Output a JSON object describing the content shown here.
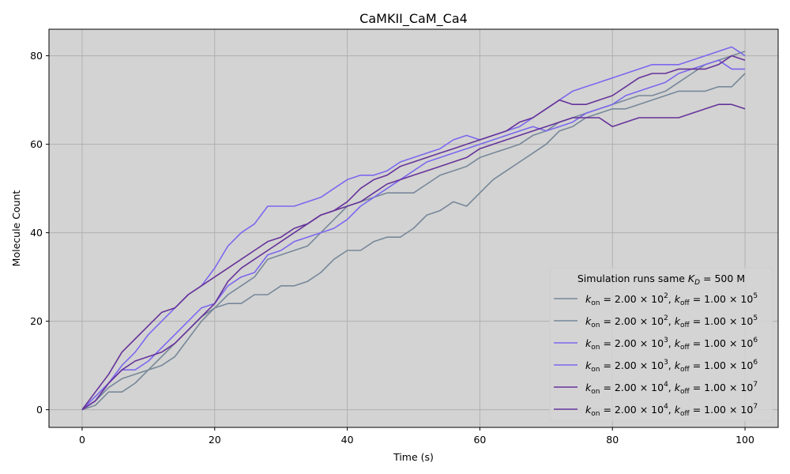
{
  "chart_data": {
    "type": "line",
    "title": "CaMKII_CaM_Ca4",
    "xlabel": "Time (s)",
    "ylabel": "Molecule Count",
    "xlim": [
      -5,
      105
    ],
    "ylim": [
      -4,
      86
    ],
    "xticks": [
      0,
      20,
      40,
      60,
      80,
      100
    ],
    "yticks": [
      0,
      20,
      40,
      60,
      80
    ],
    "grid": true,
    "background": "#d3d3d3",
    "legend": {
      "title": "Simulation runs same K_D = 500 M",
      "title_prefix": "Simulation runs same ",
      "title_symbol": "K",
      "title_subscript": "D",
      "title_suffix": " = 500 M",
      "placement": "lower-right"
    },
    "series": [
      {
        "name": "k_on = 2.00 × 10^2, k_off = 1.00 × 10^5",
        "kon_exp": "2",
        "koff_exp": "5",
        "color": "#778899",
        "points": [
          [
            0,
            0
          ],
          [
            2,
            1
          ],
          [
            4,
            4
          ],
          [
            6,
            4
          ],
          [
            8,
            6
          ],
          [
            10,
            9
          ],
          [
            12,
            10
          ],
          [
            14,
            12
          ],
          [
            16,
            16
          ],
          [
            18,
            20
          ],
          [
            20,
            23
          ],
          [
            22,
            24
          ],
          [
            24,
            24
          ],
          [
            26,
            26
          ],
          [
            28,
            26
          ],
          [
            30,
            28
          ],
          [
            32,
            28
          ],
          [
            34,
            29
          ],
          [
            36,
            31
          ],
          [
            38,
            34
          ],
          [
            40,
            36
          ],
          [
            42,
            36
          ],
          [
            44,
            38
          ],
          [
            46,
            39
          ],
          [
            48,
            39
          ],
          [
            50,
            41
          ],
          [
            52,
            44
          ],
          [
            54,
            45
          ],
          [
            56,
            47
          ],
          [
            58,
            46
          ],
          [
            60,
            49
          ],
          [
            62,
            52
          ],
          [
            64,
            54
          ],
          [
            66,
            56
          ],
          [
            68,
            58
          ],
          [
            70,
            60
          ],
          [
            72,
            63
          ],
          [
            74,
            64
          ],
          [
            76,
            66
          ],
          [
            78,
            67
          ],
          [
            80,
            68
          ],
          [
            82,
            68
          ],
          [
            84,
            69
          ],
          [
            86,
            70
          ],
          [
            88,
            71
          ],
          [
            90,
            72
          ],
          [
            92,
            72
          ],
          [
            94,
            72
          ],
          [
            96,
            73
          ],
          [
            98,
            73
          ],
          [
            100,
            76
          ]
        ]
      },
      {
        "name": "k_on = 2.00 × 10^2, k_off = 1.00 × 10^5",
        "kon_exp": "2",
        "koff_exp": "5",
        "color": "#778899",
        "points": [
          [
            0,
            0
          ],
          [
            2,
            2
          ],
          [
            4,
            5
          ],
          [
            6,
            7
          ],
          [
            8,
            8
          ],
          [
            10,
            9
          ],
          [
            12,
            12
          ],
          [
            14,
            15
          ],
          [
            16,
            18
          ],
          [
            18,
            21
          ],
          [
            20,
            23
          ],
          [
            22,
            26
          ],
          [
            24,
            28
          ],
          [
            26,
            30
          ],
          [
            28,
            34
          ],
          [
            30,
            35
          ],
          [
            32,
            36
          ],
          [
            34,
            37
          ],
          [
            36,
            40
          ],
          [
            38,
            43
          ],
          [
            40,
            46
          ],
          [
            42,
            47
          ],
          [
            44,
            48
          ],
          [
            46,
            49
          ],
          [
            48,
            49
          ],
          [
            50,
            49
          ],
          [
            52,
            51
          ],
          [
            54,
            53
          ],
          [
            56,
            54
          ],
          [
            58,
            55
          ],
          [
            60,
            57
          ],
          [
            62,
            58
          ],
          [
            64,
            59
          ],
          [
            66,
            60
          ],
          [
            68,
            62
          ],
          [
            70,
            63
          ],
          [
            72,
            65
          ],
          [
            74,
            66
          ],
          [
            76,
            67
          ],
          [
            78,
            68
          ],
          [
            80,
            69
          ],
          [
            82,
            70
          ],
          [
            84,
            71
          ],
          [
            86,
            71
          ],
          [
            88,
            72
          ],
          [
            90,
            74
          ],
          [
            92,
            76
          ],
          [
            94,
            78
          ],
          [
            96,
            79
          ],
          [
            98,
            80
          ],
          [
            100,
            81
          ]
        ]
      },
      {
        "name": "k_on = 2.00 × 10^3, k_off = 1.00 × 10^6",
        "kon_exp": "3",
        "koff_exp": "6",
        "color": "#7b68ee",
        "points": [
          [
            0,
            0
          ],
          [
            2,
            2
          ],
          [
            4,
            6
          ],
          [
            6,
            9
          ],
          [
            8,
            9
          ],
          [
            10,
            11
          ],
          [
            12,
            14
          ],
          [
            14,
            17
          ],
          [
            16,
            20
          ],
          [
            18,
            23
          ],
          [
            20,
            24
          ],
          [
            22,
            28
          ],
          [
            24,
            30
          ],
          [
            26,
            31
          ],
          [
            28,
            35
          ],
          [
            30,
            36
          ],
          [
            32,
            38
          ],
          [
            34,
            39
          ],
          [
            36,
            40
          ],
          [
            38,
            41
          ],
          [
            40,
            43
          ],
          [
            42,
            46
          ],
          [
            44,
            48
          ],
          [
            46,
            50
          ],
          [
            48,
            52
          ],
          [
            50,
            54
          ],
          [
            52,
            56
          ],
          [
            54,
            57
          ],
          [
            56,
            58
          ],
          [
            58,
            59
          ],
          [
            60,
            60
          ],
          [
            62,
            61
          ],
          [
            64,
            62
          ],
          [
            66,
            63
          ],
          [
            68,
            64
          ],
          [
            70,
            63
          ],
          [
            72,
            64
          ],
          [
            74,
            65
          ],
          [
            76,
            67
          ],
          [
            78,
            68
          ],
          [
            80,
            69
          ],
          [
            82,
            71
          ],
          [
            84,
            72
          ],
          [
            86,
            73
          ],
          [
            88,
            74
          ],
          [
            90,
            76
          ],
          [
            92,
            77
          ],
          [
            94,
            78
          ],
          [
            96,
            79
          ],
          [
            98,
            77
          ],
          [
            100,
            77
          ]
        ]
      },
      {
        "name": "k_on = 2.00 × 10^3, k_off = 1.00 × 10^6",
        "kon_exp": "3",
        "koff_exp": "6",
        "color": "#7b68ee",
        "points": [
          [
            0,
            0
          ],
          [
            2,
            3
          ],
          [
            4,
            6
          ],
          [
            6,
            10
          ],
          [
            8,
            13
          ],
          [
            10,
            17
          ],
          [
            12,
            20
          ],
          [
            14,
            23
          ],
          [
            16,
            26
          ],
          [
            18,
            28
          ],
          [
            20,
            32
          ],
          [
            22,
            37
          ],
          [
            24,
            40
          ],
          [
            26,
            42
          ],
          [
            28,
            46
          ],
          [
            30,
            46
          ],
          [
            32,
            46
          ],
          [
            34,
            47
          ],
          [
            36,
            48
          ],
          [
            38,
            50
          ],
          [
            40,
            52
          ],
          [
            42,
            53
          ],
          [
            44,
            53
          ],
          [
            46,
            54
          ],
          [
            48,
            56
          ],
          [
            50,
            57
          ],
          [
            52,
            58
          ],
          [
            54,
            59
          ],
          [
            56,
            61
          ],
          [
            58,
            62
          ],
          [
            60,
            61
          ],
          [
            62,
            62
          ],
          [
            64,
            63
          ],
          [
            66,
            64
          ],
          [
            68,
            66
          ],
          [
            70,
            68
          ],
          [
            72,
            70
          ],
          [
            74,
            72
          ],
          [
            76,
            73
          ],
          [
            78,
            74
          ],
          [
            80,
            75
          ],
          [
            82,
            76
          ],
          [
            84,
            77
          ],
          [
            86,
            78
          ],
          [
            88,
            78
          ],
          [
            90,
            78
          ],
          [
            92,
            79
          ],
          [
            94,
            80
          ],
          [
            96,
            81
          ],
          [
            98,
            82
          ],
          [
            100,
            80
          ]
        ]
      },
      {
        "name": "k_on = 2.00 × 10^4, k_off = 1.00 × 10^7",
        "kon_exp": "4",
        "koff_exp": "7",
        "color": "#663399",
        "points": [
          [
            0,
            0
          ],
          [
            2,
            2
          ],
          [
            4,
            6
          ],
          [
            6,
            9
          ],
          [
            8,
            11
          ],
          [
            10,
            12
          ],
          [
            12,
            13
          ],
          [
            14,
            15
          ],
          [
            16,
            18
          ],
          [
            18,
            21
          ],
          [
            20,
            24
          ],
          [
            22,
            29
          ],
          [
            24,
            32
          ],
          [
            26,
            34
          ],
          [
            28,
            36
          ],
          [
            30,
            38
          ],
          [
            32,
            40
          ],
          [
            34,
            42
          ],
          [
            36,
            44
          ],
          [
            38,
            45
          ],
          [
            40,
            46
          ],
          [
            42,
            47
          ],
          [
            44,
            49
          ],
          [
            46,
            51
          ],
          [
            48,
            52
          ],
          [
            50,
            53
          ],
          [
            52,
            54
          ],
          [
            54,
            55
          ],
          [
            56,
            56
          ],
          [
            58,
            57
          ],
          [
            60,
            59
          ],
          [
            62,
            60
          ],
          [
            64,
            61
          ],
          [
            66,
            62
          ],
          [
            68,
            63
          ],
          [
            70,
            64
          ],
          [
            72,
            65
          ],
          [
            74,
            66
          ],
          [
            76,
            66
          ],
          [
            78,
            66
          ],
          [
            80,
            64
          ],
          [
            82,
            65
          ],
          [
            84,
            66
          ],
          [
            86,
            66
          ],
          [
            88,
            66
          ],
          [
            90,
            66
          ],
          [
            92,
            67
          ],
          [
            94,
            68
          ],
          [
            96,
            69
          ],
          [
            98,
            69
          ],
          [
            100,
            68
          ]
        ]
      },
      {
        "name": "k_on = 2.00 × 10^4, k_off = 1.00 × 10^7",
        "kon_exp": "4",
        "koff_exp": "7",
        "color": "#663399",
        "points": [
          [
            0,
            0
          ],
          [
            2,
            4
          ],
          [
            4,
            8
          ],
          [
            6,
            13
          ],
          [
            8,
            16
          ],
          [
            10,
            19
          ],
          [
            12,
            22
          ],
          [
            14,
            23
          ],
          [
            16,
            26
          ],
          [
            18,
            28
          ],
          [
            20,
            30
          ],
          [
            22,
            32
          ],
          [
            24,
            34
          ],
          [
            26,
            36
          ],
          [
            28,
            38
          ],
          [
            30,
            39
          ],
          [
            32,
            41
          ],
          [
            34,
            42
          ],
          [
            36,
            44
          ],
          [
            38,
            45
          ],
          [
            40,
            47
          ],
          [
            42,
            50
          ],
          [
            44,
            52
          ],
          [
            46,
            53
          ],
          [
            48,
            55
          ],
          [
            50,
            56
          ],
          [
            52,
            57
          ],
          [
            54,
            58
          ],
          [
            56,
            59
          ],
          [
            58,
            60
          ],
          [
            60,
            61
          ],
          [
            62,
            62
          ],
          [
            64,
            63
          ],
          [
            66,
            65
          ],
          [
            68,
            66
          ],
          [
            70,
            68
          ],
          [
            72,
            70
          ],
          [
            74,
            69
          ],
          [
            76,
            69
          ],
          [
            78,
            70
          ],
          [
            80,
            71
          ],
          [
            82,
            73
          ],
          [
            84,
            75
          ],
          [
            86,
            76
          ],
          [
            88,
            76
          ],
          [
            90,
            77
          ],
          [
            92,
            77
          ],
          [
            94,
            77
          ],
          [
            96,
            78
          ],
          [
            98,
            80
          ],
          [
            100,
            79
          ]
        ]
      }
    ]
  }
}
